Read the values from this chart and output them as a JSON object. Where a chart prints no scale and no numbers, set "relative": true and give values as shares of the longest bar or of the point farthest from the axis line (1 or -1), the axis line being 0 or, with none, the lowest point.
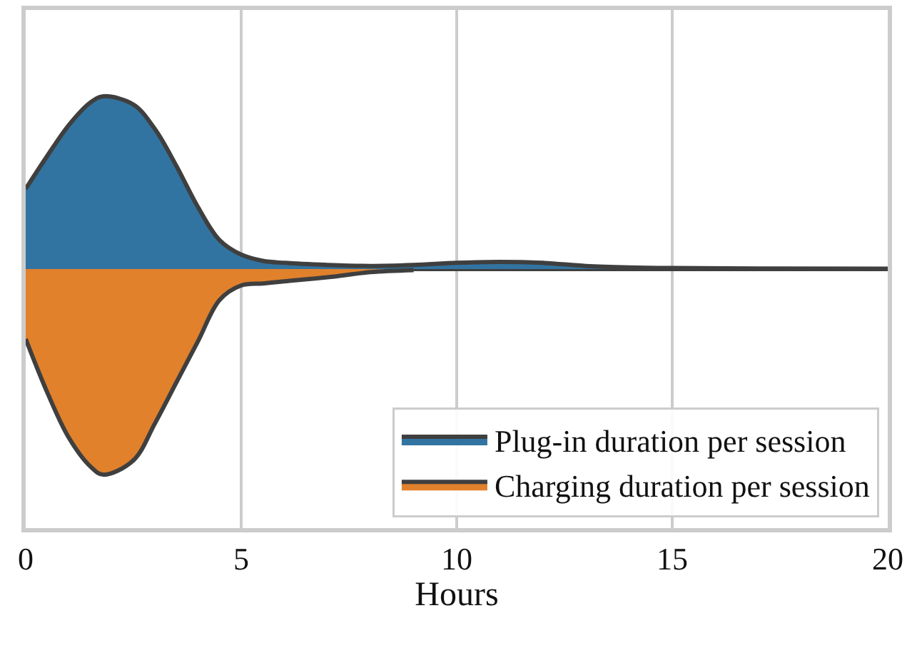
{
  "chart_data": {
    "type": "area",
    "relative": true,
    "xlabel": "Hours",
    "x": [
      0,
      0.5,
      1,
      1.5,
      1.8,
      2.5,
      3,
      3.5,
      4,
      4.5,
      5,
      5.5,
      6,
      7,
      8,
      9,
      10,
      11,
      12,
      13,
      14,
      15,
      17,
      20
    ],
    "series": [
      {
        "name": "Plug-in duration per session",
        "color": "#3274a1",
        "values": [
          0.39,
          0.55,
          0.7,
          0.81,
          0.84,
          0.8,
          0.68,
          0.5,
          0.3,
          0.14,
          0.07,
          0.04,
          0.03,
          0.02,
          0.015,
          0.02,
          0.03,
          0.035,
          0.03,
          0.015,
          0.008,
          0.005,
          0.003,
          0.002
        ]
      },
      {
        "name": "Charging duration per session",
        "color": "#e1812c",
        "values": [
          -0.34,
          -0.6,
          -0.82,
          -0.96,
          -1,
          -0.93,
          -0.75,
          -0.55,
          -0.35,
          -0.15,
          -0.08,
          -0.07,
          -0.06,
          -0.04,
          -0.015,
          -0.005,
          null,
          null,
          null,
          null,
          null,
          null,
          null,
          null
        ]
      }
    ],
    "xlim": [
      0,
      20
    ],
    "xticks": [
      0,
      5,
      10,
      15,
      20
    ],
    "grid": "x",
    "legend": "bottom right",
    "tick_labels": "x"
  }
}
